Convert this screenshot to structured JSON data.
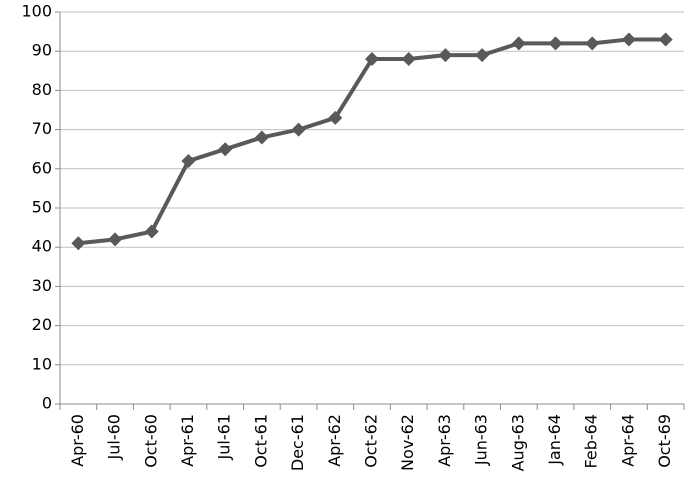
{
  "chart_data": {
    "type": "line",
    "categories": [
      "Apr-60",
      "Jul-60",
      "Oct-60",
      "Apr-61",
      "Jul-61",
      "Oct-61",
      "Dec-61",
      "Apr-62",
      "Oct-62",
      "Nov-62",
      "Apr-63",
      "Jun-63",
      "Aug-63",
      "Jan-64",
      "Feb-64",
      "Apr-64",
      "Oct-69"
    ],
    "values": [
      41,
      42,
      44,
      62,
      65,
      68,
      70,
      73,
      88,
      88,
      89,
      89,
      92,
      92,
      92,
      93,
      93
    ],
    "color": "#595959",
    "ylim": [
      0,
      100
    ],
    "yticks": [
      0,
      10,
      20,
      30,
      40,
      50,
      60,
      70,
      80,
      90,
      100
    ],
    "grid": true
  }
}
